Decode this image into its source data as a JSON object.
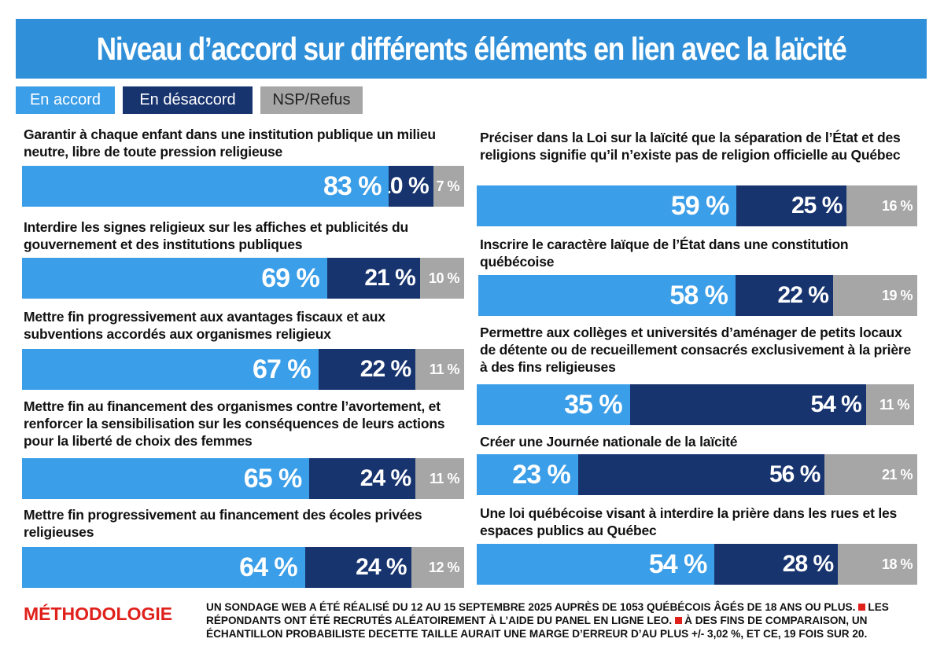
{
  "title": "Niveau d’accord sur différents éléments en lien avec la laïcité",
  "legend": [
    {
      "label": "En accord",
      "color": "#3b9ee8"
    },
    {
      "label": "En désaccord",
      "color": "#17346f"
    },
    {
      "label": "NSP/Refus",
      "color": "#a6a6a6"
    }
  ],
  "chart_data": {
    "type": "bar",
    "orientation": "horizontal",
    "stacked": true,
    "series_names": [
      "En accord",
      "En désaccord",
      "NSP/Refus"
    ],
    "items": [
      {
        "label": "Garantir à chaque enfant dans une institution publique un milieu neutre, libre de toute pression religieuse",
        "values": [
          83,
          10,
          7
        ],
        "labels": [
          "83 %",
          "10 %",
          "7 %"
        ]
      },
      {
        "label": "Interdire les signes religieux sur les affiches et publicités du gouvernement et des institutions publiques",
        "values": [
          69,
          21,
          10
        ],
        "labels": [
          "69 %",
          "21 %",
          "10 %"
        ]
      },
      {
        "label": "Mettre fin progressivement aux avantages fiscaux et aux subventions accordés aux organismes religieux",
        "values": [
          67,
          22,
          11
        ],
        "labels": [
          "67 %",
          "22 %",
          "11 %"
        ]
      },
      {
        "label": "Mettre fin au financement des organismes contre l’avortement, et renforcer la sensibilisation sur les conséquences de leurs actions pour la liberté de choix des femmes",
        "values": [
          65,
          24,
          11
        ],
        "labels": [
          "65 %",
          "24 %",
          "11 %"
        ]
      },
      {
        "label": "Mettre fin progressivement au financement des écoles privées religieuses",
        "values": [
          64,
          24,
          12
        ],
        "labels": [
          "64 %",
          "24 %",
          "12 %"
        ]
      },
      {
        "label": "Préciser dans la Loi sur la laïcité que la séparation de l’État et des religions signifie qu’il n’existe pas de religion officielle au Québec",
        "values": [
          59,
          25,
          16
        ],
        "labels": [
          "59 %",
          "25 %",
          "16 %"
        ]
      },
      {
        "label": "Inscrire le caractère laïque de l’État dans une constitution québécoise",
        "values": [
          58,
          22,
          19
        ],
        "labels": [
          "58 %",
          "22 %",
          "19 %"
        ]
      },
      {
        "label": "Permettre aux collèges et universités d’aménager de petits locaux de détente ou de recueillement consacrés exclusivement à la prière à des fins religieuses",
        "values": [
          35,
          54,
          11
        ],
        "labels": [
          "35 %",
          "54 %",
          "11 %"
        ]
      },
      {
        "label": "Créer une Journée nationale de la laïcité",
        "values": [
          23,
          56,
          21
        ],
        "labels": [
          "23 %",
          "56 %",
          "21 %"
        ]
      },
      {
        "label": "Une loi québécoise visant à interdire la prière dans les rues et les espaces publics au Québec",
        "values": [
          54,
          28,
          18
        ],
        "labels": [
          "54 %",
          "28 %",
          "18 %"
        ]
      }
    ]
  },
  "methodology": {
    "heading": "MÉTHODOLOGIE",
    "part1": "UN SONDAGE WEB A ÉTÉ RÉALISÉ DU 12 AU 15 SEPTEMBRE 2025 AUPRÈS DE 1053 QUÉBÉCOIS ÂGÉS DE 18 ANS OU PLUS.",
    "part2": "LES RÉPONDANTS ONT ÉTÉ RECRUTÉS ALÉATOIREMENT À L’AIDE DU PANEL EN LIGNE LEO.",
    "part3": "À DES FINS DE COMPARAISON, UN ÉCHANTILLON PROBABILISTE DECETTE TAILLE AURAIT UNE MARGE D’ERREUR D’AU PLUS +/- 3,02 %, ET CE, 19 FOIS SUR 20."
  }
}
